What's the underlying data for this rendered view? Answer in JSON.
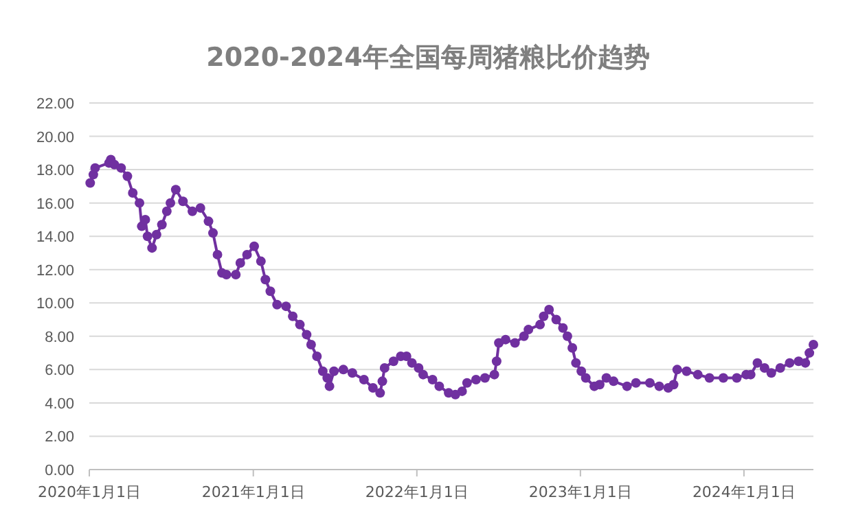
{
  "chart_data": {
    "type": "line",
    "title": "2020-2024年全国每周猪粮比价趋势",
    "color": "#7030a0",
    "marker": "circle",
    "grid": "y",
    "xlim": [
      "2020-01-01",
      "2024-06-04"
    ],
    "xticks": [
      {
        "value": "2020-01-01",
        "label": "2020年1月1日"
      },
      {
        "value": "2021-01-01",
        "label": "2021年1月1日"
      },
      {
        "value": "2022-01-01",
        "label": "2022年1月1日"
      },
      {
        "value": "2023-01-01",
        "label": "2023年1月1日"
      },
      {
        "value": "2024-01-01",
        "label": "2024年1月1日"
      }
    ],
    "ylim": [
      0,
      22
    ],
    "yticks": [
      {
        "value": 0,
        "label": "0.00"
      },
      {
        "value": 2,
        "label": "2.00"
      },
      {
        "value": 4,
        "label": "4.00"
      },
      {
        "value": 6,
        "label": "6.00"
      },
      {
        "value": 8,
        "label": "8.00"
      },
      {
        "value": 10,
        "label": "10.00"
      },
      {
        "value": 12,
        "label": "12.00"
      },
      {
        "value": 14,
        "label": "14.00"
      },
      {
        "value": 16,
        "label": "16.00"
      },
      {
        "value": 18,
        "label": "18.00"
      },
      {
        "value": 20,
        "label": "20.00"
      },
      {
        "value": 22,
        "label": "22.00"
      }
    ],
    "x": [
      "2020-01-03",
      "2020-01-10",
      "2020-01-14",
      "2020-02-14",
      "2020-02-18",
      "2020-02-26",
      "2020-03-12",
      "2020-03-26",
      "2020-04-07",
      "2020-04-22",
      "2020-04-27",
      "2020-05-05",
      "2020-05-10",
      "2020-05-20",
      "2020-05-30",
      "2020-06-11",
      "2020-06-22",
      "2020-06-30",
      "2020-07-12",
      "2020-07-28",
      "2020-08-18",
      "2020-09-05",
      "2020-09-23",
      "2020-10-03",
      "2020-10-13",
      "2020-10-23",
      "2020-11-02",
      "2020-11-23",
      "2020-12-03",
      "2020-12-18",
      "2021-01-03",
      "2021-01-18",
      "2021-01-28",
      "2021-02-08",
      "2021-02-23",
      "2021-03-15",
      "2021-03-30",
      "2021-04-15",
      "2021-04-30",
      "2021-05-10",
      "2021-05-23",
      "2021-06-05",
      "2021-06-15",
      "2021-06-20",
      "2021-06-30",
      "2021-07-21",
      "2021-08-10",
      "2021-09-05",
      "2021-09-25",
      "2021-10-11",
      "2021-10-16",
      "2021-10-21",
      "2021-11-10",
      "2021-11-26",
      "2021-12-09",
      "2021-12-21",
      "2022-01-05",
      "2022-01-15",
      "2022-02-05",
      "2022-02-20",
      "2022-03-13",
      "2022-03-28",
      "2022-04-12",
      "2022-04-23",
      "2022-05-13",
      "2022-06-02",
      "2022-06-23",
      "2022-06-28",
      "2022-07-03",
      "2022-07-18",
      "2022-08-08",
      "2022-08-28",
      "2022-09-07",
      "2022-10-03",
      "2022-10-11",
      "2022-10-23",
      "2022-11-08",
      "2022-11-23",
      "2022-12-03",
      "2022-12-14",
      "2022-12-22",
      "2023-01-03",
      "2023-01-13",
      "2023-02-01",
      "2023-02-13",
      "2023-02-28",
      "2023-03-16",
      "2023-04-15",
      "2023-05-05",
      "2023-06-05",
      "2023-06-26",
      "2023-07-16",
      "2023-07-28",
      "2023-08-05",
      "2023-08-26",
      "2023-09-20",
      "2023-10-16",
      "2023-11-16",
      "2023-12-16",
      "2024-01-06",
      "2024-01-16",
      "2024-01-31",
      "2024-02-16",
      "2024-03-02",
      "2024-03-22",
      "2024-04-12",
      "2024-05-02",
      "2024-05-17",
      "2024-05-26",
      "2024-06-04"
    ],
    "values": [
      17.2,
      17.7,
      18.1,
      18.4,
      18.6,
      18.3,
      18.1,
      17.6,
      16.6,
      16.0,
      14.6,
      15.0,
      14.0,
      13.3,
      14.1,
      14.7,
      15.5,
      16.0,
      16.8,
      16.1,
      15.5,
      15.7,
      14.9,
      14.2,
      12.9,
      11.8,
      11.7,
      11.7,
      12.4,
      12.9,
      13.4,
      12.5,
      11.4,
      10.7,
      9.9,
      9.8,
      9.2,
      8.7,
      8.1,
      7.5,
      6.8,
      5.9,
      5.5,
      5.0,
      5.9,
      6.0,
      5.8,
      5.4,
      4.9,
      4.6,
      5.3,
      6.1,
      6.5,
      6.8,
      6.8,
      6.4,
      6.1,
      5.7,
      5.4,
      5.0,
      4.6,
      4.5,
      4.7,
      5.2,
      5.4,
      5.5,
      5.7,
      6.5,
      7.6,
      7.8,
      7.6,
      8.0,
      8.4,
      8.7,
      9.2,
      9.6,
      9.0,
      8.5,
      8.0,
      7.3,
      6.4,
      5.9,
      5.5,
      5.0,
      5.1,
      5.5,
      5.3,
      5.0,
      5.2,
      5.2,
      5.0,
      4.9,
      5.1,
      6.0,
      5.9,
      5.7,
      5.5,
      5.5,
      5.5,
      5.7,
      5.7,
      6.4,
      6.1,
      5.8,
      6.1,
      6.4,
      6.5,
      6.4,
      7.0,
      7.5
    ]
  }
}
